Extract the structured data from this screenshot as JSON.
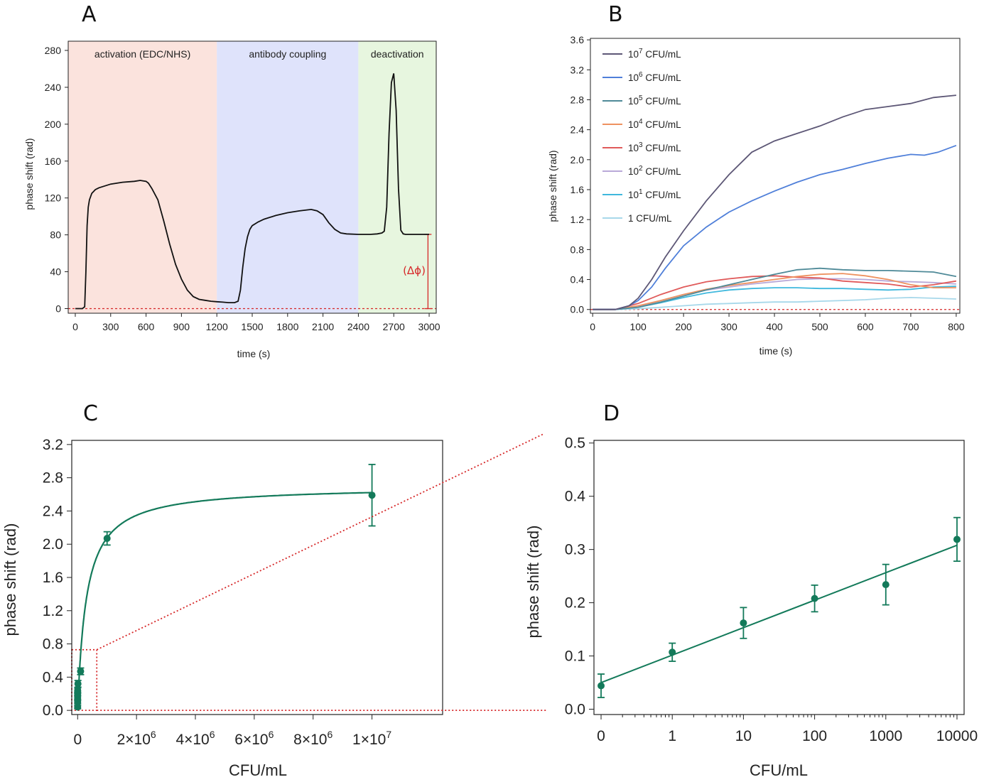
{
  "colors": {
    "activation": "#fbe3dd",
    "coupling": "#dfe3fb",
    "deactivation": "#e7f6df",
    "trace": "#111111",
    "baseline_red": "#d62728",
    "teal": "#137a5a"
  },
  "chart_data": [
    {
      "id": "A",
      "type": "line",
      "panel_label": "A",
      "xlabel": "time (s)",
      "ylabel": "phase shift (rad)",
      "xlim": [
        -60,
        3060
      ],
      "ylim": [
        -5,
        290
      ],
      "xticks": [
        0,
        300,
        600,
        900,
        1200,
        1500,
        1800,
        2100,
        2400,
        2700,
        3000
      ],
      "yticks": [
        0,
        40,
        80,
        120,
        160,
        200,
        240,
        280
      ],
      "regions": [
        {
          "label": "activation (EDC/NHS)",
          "x0": -60,
          "x1": 1200,
          "color_key": "activation"
        },
        {
          "label": "antibody coupling",
          "x0": 1200,
          "x1": 2400,
          "color_key": "coupling"
        },
        {
          "label": "deactivation",
          "x0": 2400,
          "x1": 3060,
          "color_key": "deactivation"
        }
      ],
      "annotation": "(Δϕ)",
      "series": [
        {
          "x": [
            0,
            60,
            80,
            90,
            100,
            110,
            120,
            140,
            170,
            200,
            250,
            300,
            400,
            500,
            550,
            600,
            620,
            650,
            700,
            750,
            800,
            850,
            900,
            950,
            1000,
            1050,
            1100,
            1150,
            1200,
            1250,
            1300,
            1350,
            1380,
            1400,
            1420,
            1440,
            1460,
            1480,
            1500,
            1550,
            1600,
            1700,
            1800,
            1900,
            2000,
            2050,
            2100,
            2150,
            2200,
            2250,
            2300,
            2400,
            2500,
            2560,
            2600,
            2620,
            2640,
            2660,
            2680,
            2700,
            2720,
            2740,
            2760,
            2780,
            2800,
            2900,
            3000
          ],
          "y": [
            0,
            0,
            2,
            40,
            90,
            110,
            118,
            125,
            129,
            131,
            133,
            135,
            137,
            138,
            139,
            138,
            136,
            130,
            118,
            95,
            70,
            48,
            32,
            20,
            13,
            10,
            9,
            8,
            7.5,
            7,
            6.5,
            6.5,
            8,
            20,
            45,
            65,
            78,
            86,
            90,
            94,
            97,
            101,
            104,
            106,
            107.5,
            106,
            102,
            93,
            86,
            82,
            81,
            80.5,
            80.5,
            81,
            82,
            84,
            110,
            190,
            245,
            255,
            215,
            130,
            85,
            81,
            80.5,
            80.5,
            80.5
          ]
        }
      ]
    },
    {
      "id": "B",
      "type": "line",
      "panel_label": "B",
      "xlabel": "time (s)",
      "ylabel": "phase shift  (rad)",
      "xlim": [
        -5,
        808
      ],
      "ylim": [
        -0.05,
        3.62
      ],
      "xticks": [
        0,
        100,
        200,
        300,
        400,
        500,
        600,
        700,
        800
      ],
      "yticks": [
        0.0,
        0.4,
        0.8,
        1.2,
        1.6,
        2.0,
        2.4,
        2.8,
        3.2,
        3.6
      ],
      "series": [
        {
          "name": "10",
          "exp": "7",
          "suffix": " CFU/mL",
          "color": "#5d5776",
          "x": [
            0,
            50,
            80,
            100,
            130,
            160,
            200,
            250,
            300,
            350,
            400,
            450,
            500,
            550,
            600,
            650,
            700,
            750,
            800
          ],
          "y": [
            0.0,
            0.0,
            0.05,
            0.15,
            0.4,
            0.7,
            1.05,
            1.45,
            1.8,
            2.1,
            2.25,
            2.35,
            2.45,
            2.57,
            2.67,
            2.71,
            2.75,
            2.83,
            2.86
          ]
        },
        {
          "name": "10",
          "exp": "6",
          "suffix": " CFU/mL",
          "color": "#4f7fd9",
          "x": [
            0,
            50,
            80,
            100,
            130,
            160,
            200,
            250,
            300,
            350,
            400,
            450,
            500,
            550,
            600,
            650,
            700,
            730,
            760,
            800
          ],
          "y": [
            0.0,
            0.0,
            0.05,
            0.12,
            0.3,
            0.55,
            0.85,
            1.1,
            1.3,
            1.45,
            1.58,
            1.7,
            1.8,
            1.87,
            1.95,
            2.02,
            2.07,
            2.06,
            2.1,
            2.19
          ]
        },
        {
          "name": "10",
          "exp": "5",
          "suffix": " CFU/mL",
          "color": "#4f8a98",
          "x": [
            0,
            50,
            100,
            150,
            200,
            250,
            300,
            350,
            400,
            450,
            500,
            550,
            600,
            650,
            700,
            750,
            800
          ],
          "y": [
            0.0,
            0.0,
            0.03,
            0.1,
            0.18,
            0.26,
            0.33,
            0.4,
            0.47,
            0.53,
            0.55,
            0.53,
            0.52,
            0.52,
            0.51,
            0.5,
            0.44
          ]
        },
        {
          "name": "10",
          "exp": "4",
          "suffix": " CFU/mL",
          "color": "#ee9260",
          "x": [
            0,
            50,
            100,
            150,
            200,
            250,
            300,
            350,
            400,
            450,
            500,
            550,
            600,
            650,
            700,
            750,
            800
          ],
          "y": [
            0.0,
            0.0,
            0.05,
            0.12,
            0.2,
            0.27,
            0.32,
            0.36,
            0.4,
            0.44,
            0.47,
            0.48,
            0.45,
            0.4,
            0.33,
            0.29,
            0.29
          ]
        },
        {
          "name": "10",
          "exp": "3",
          "suffix": " CFU/mL",
          "color": "#e05a5a",
          "x": [
            0,
            50,
            100,
            150,
            200,
            250,
            300,
            350,
            400,
            450,
            500,
            550,
            600,
            650,
            700,
            750,
            800
          ],
          "y": [
            0.0,
            0.0,
            0.08,
            0.2,
            0.3,
            0.37,
            0.41,
            0.44,
            0.45,
            0.43,
            0.42,
            0.38,
            0.36,
            0.34,
            0.3,
            0.33,
            0.38
          ]
        },
        {
          "name": "10",
          "exp": "2",
          "suffix": " CFU/mL",
          "color": "#b9a9d8",
          "x": [
            0,
            50,
            100,
            150,
            200,
            250,
            300,
            350,
            400,
            450,
            500,
            550,
            600,
            650,
            700,
            750,
            800
          ],
          "y": [
            0.0,
            0.0,
            0.04,
            0.12,
            0.2,
            0.26,
            0.3,
            0.34,
            0.37,
            0.4,
            0.41,
            0.41,
            0.4,
            0.38,
            0.37,
            0.36,
            0.34
          ]
        },
        {
          "name": "10",
          "exp": "1",
          "suffix": " CFU/mL",
          "color": "#3fb8dd",
          "x": [
            0,
            50,
            100,
            150,
            200,
            250,
            300,
            350,
            400,
            450,
            500,
            550,
            600,
            650,
            700,
            750,
            800
          ],
          "y": [
            0.0,
            0.0,
            0.03,
            0.09,
            0.16,
            0.22,
            0.26,
            0.28,
            0.29,
            0.29,
            0.28,
            0.28,
            0.27,
            0.26,
            0.27,
            0.3,
            0.31
          ]
        },
        {
          "name": "1",
          "exp": "",
          "suffix": " CFU/mL",
          "color": "#a7d8ea",
          "x": [
            0,
            50,
            100,
            150,
            200,
            250,
            300,
            350,
            400,
            450,
            500,
            550,
            600,
            650,
            700,
            750,
            800
          ],
          "y": [
            0.0,
            0.0,
            0.01,
            0.03,
            0.05,
            0.07,
            0.08,
            0.09,
            0.1,
            0.1,
            0.11,
            0.12,
            0.13,
            0.15,
            0.16,
            0.15,
            0.14
          ]
        }
      ]
    },
    {
      "id": "C",
      "type": "scatter",
      "panel_label": "C",
      "xlabel": "CFU/mL",
      "ylabel": "phase shift (rad)",
      "xlim": [
        -200000,
        12400000
      ],
      "ylim": [
        -0.05,
        3.25
      ],
      "xticks": [
        0,
        2000000,
        4000000,
        6000000,
        8000000,
        10000000
      ],
      "xtick_labels": [
        {
          "base": "0",
          "exp": ""
        },
        {
          "base": "2×10",
          "exp": "6"
        },
        {
          "base": "4×10",
          "exp": "6"
        },
        {
          "base": "6×10",
          "exp": "6"
        },
        {
          "base": "8×10",
          "exp": "6"
        },
        {
          "base": "1×10",
          "exp": "7"
        }
      ],
      "yticks": [
        0.0,
        0.4,
        0.8,
        1.2,
        1.6,
        2.0,
        2.4,
        2.8,
        3.2
      ],
      "points": [
        {
          "x": 0,
          "y": 0.04,
          "err": 0.02
        },
        {
          "x": 1,
          "y": 0.1,
          "err": 0.02
        },
        {
          "x": 10,
          "y": 0.15,
          "err": 0.02
        },
        {
          "x": 100,
          "y": 0.2,
          "err": 0.02
        },
        {
          "x": 1000,
          "y": 0.24,
          "err": 0.03
        },
        {
          "x": 10000,
          "y": 0.32,
          "err": 0.04
        },
        {
          "x": 100000,
          "y": 0.47,
          "err": 0.04
        },
        {
          "x": 1000000,
          "y": 2.07,
          "err": 0.08
        },
        {
          "x": 10000000,
          "y": 2.59,
          "err": 0.37
        }
      ],
      "fit": {
        "model": "hyperbolic",
        "ymax": 2.7,
        "k": 300000
      },
      "zoom_box": {
        "x0": -200000,
        "x1": 650000,
        "y0": 0.0,
        "y1": 0.73
      }
    },
    {
      "id": "D",
      "type": "scatter",
      "panel_label": "D",
      "xlabel": "CFU/mL",
      "ylabel": "phase shift (rad)",
      "xlim": [
        -0.1,
        5.1
      ],
      "ylim": [
        -0.01,
        0.505
      ],
      "xtick_labels": [
        "0",
        "1",
        "10",
        "100",
        "1000",
        "10000"
      ],
      "yticks": [
        0.0,
        0.1,
        0.2,
        0.3,
        0.4,
        0.5
      ],
      "points": [
        {
          "x": 0,
          "y": 0.044,
          "err": 0.022
        },
        {
          "x": 1,
          "y": 0.107,
          "err": 0.017
        },
        {
          "x": 2,
          "y": 0.162,
          "err": 0.029
        },
        {
          "x": 3,
          "y": 0.208,
          "err": 0.025
        },
        {
          "x": 4,
          "y": 0.234,
          "err": 0.038
        },
        {
          "x": 5,
          "y": 0.319,
          "err": 0.041
        }
      ],
      "fit": {
        "model": "linear",
        "x0": 0,
        "y0": 0.05,
        "x1": 5,
        "y1": 0.308
      }
    }
  ]
}
